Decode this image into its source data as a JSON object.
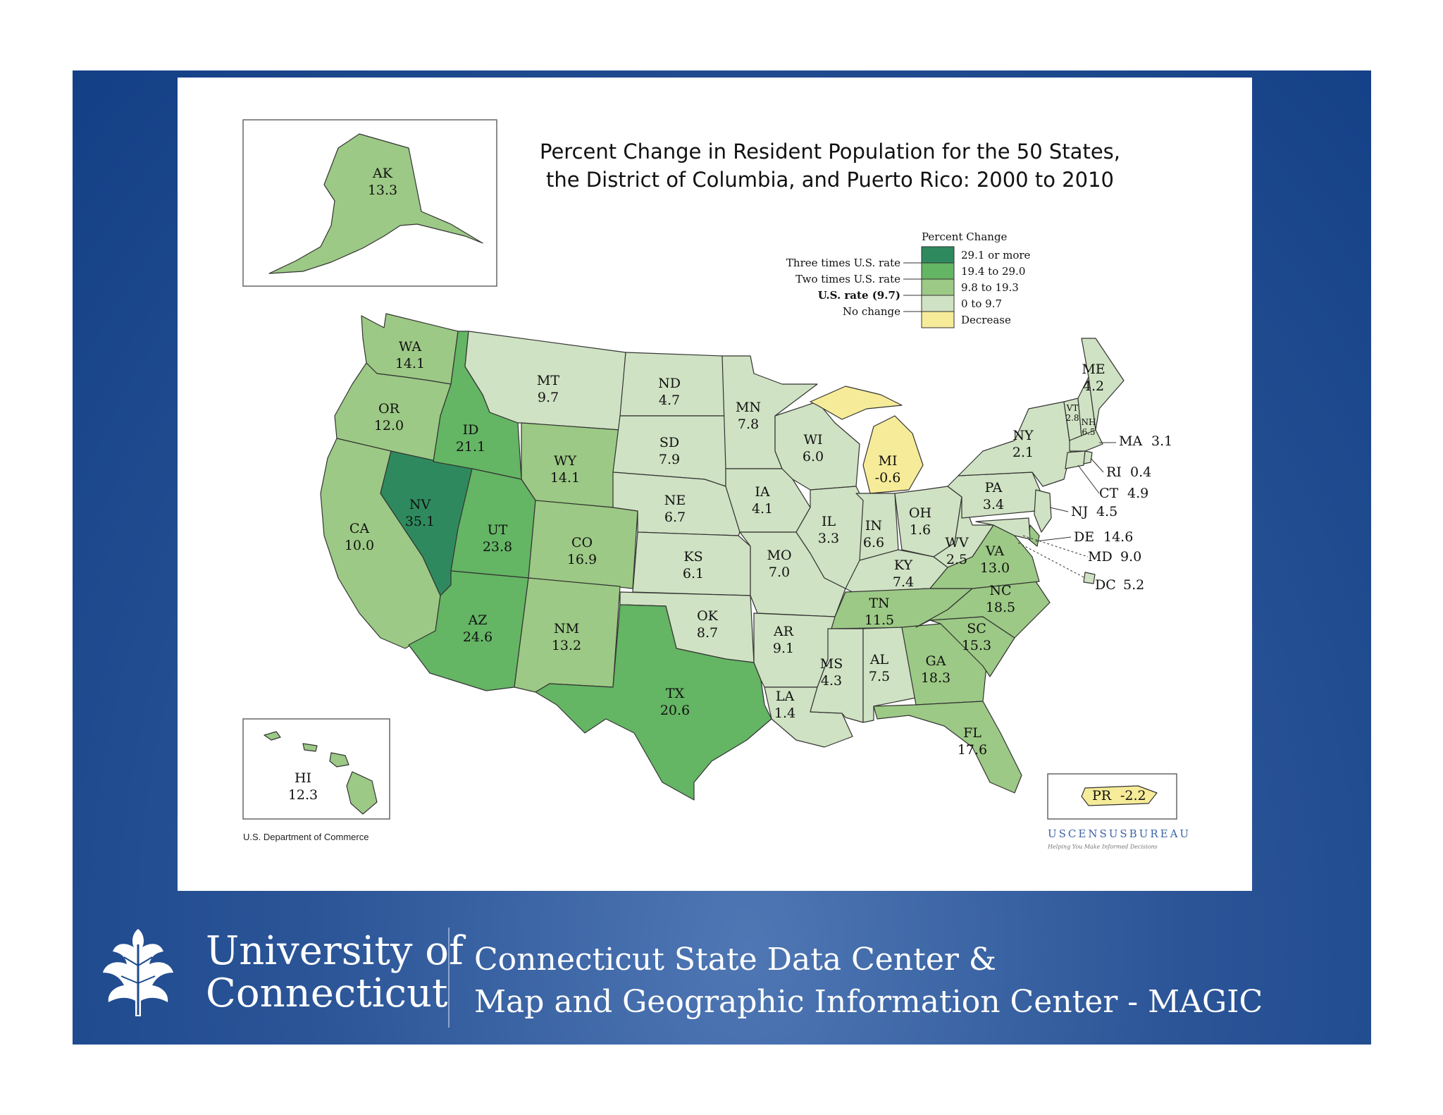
{
  "title": {
    "line1": "Percent Change in Resident Population for the 50 States,",
    "line2": "the District of Columbia, and Puerto Rico:  2000 to 2010"
  },
  "legend": {
    "heading": "Percent Change",
    "bins": [
      {
        "label": "29.1 or more",
        "color": "#2e8a5e",
        "marker": "Three times U.S. rate"
      },
      {
        "label": "19.4 to 29.0",
        "color": "#64b564",
        "marker": "Two times U.S. rate"
      },
      {
        "label": "9.8 to 19.3",
        "color": "#9cc985",
        "marker": "U.S. rate (9.7)"
      },
      {
        "label": "0 to 9.7",
        "color": "#cfe2c3",
        "marker": "No change"
      },
      {
        "label": "Decrease",
        "color": "#f6eb98",
        "marker": ""
      }
    ]
  },
  "states": {
    "AK": {
      "abbr": "AK",
      "value": "13.3"
    },
    "HI": {
      "abbr": "HI",
      "value": "12.3"
    },
    "WA": {
      "abbr": "WA",
      "value": "14.1"
    },
    "OR": {
      "abbr": "OR",
      "value": "12.0"
    },
    "CA": {
      "abbr": "CA",
      "value": "10.0"
    },
    "NV": {
      "abbr": "NV",
      "value": "35.1"
    },
    "ID": {
      "abbr": "ID",
      "value": "21.1"
    },
    "MT": {
      "abbr": "MT",
      "value": "9.7"
    },
    "WY": {
      "abbr": "WY",
      "value": "14.1"
    },
    "UT": {
      "abbr": "UT",
      "value": "23.8"
    },
    "AZ": {
      "abbr": "AZ",
      "value": "24.6"
    },
    "CO": {
      "abbr": "CO",
      "value": "16.9"
    },
    "NM": {
      "abbr": "NM",
      "value": "13.2"
    },
    "ND": {
      "abbr": "ND",
      "value": "4.7"
    },
    "SD": {
      "abbr": "SD",
      "value": "7.9"
    },
    "NE": {
      "abbr": "NE",
      "value": "6.7"
    },
    "KS": {
      "abbr": "KS",
      "value": "6.1"
    },
    "OK": {
      "abbr": "OK",
      "value": "8.7"
    },
    "TX": {
      "abbr": "TX",
      "value": "20.6"
    },
    "MN": {
      "abbr": "MN",
      "value": "7.8"
    },
    "IA": {
      "abbr": "IA",
      "value": "4.1"
    },
    "MO": {
      "abbr": "MO",
      "value": "7.0"
    },
    "AR": {
      "abbr": "AR",
      "value": "9.1"
    },
    "LA": {
      "abbr": "LA",
      "value": "1.4"
    },
    "WI": {
      "abbr": "WI",
      "value": "6.0"
    },
    "IL": {
      "abbr": "IL",
      "value": "3.3"
    },
    "MI": {
      "abbr": "MI",
      "value": "-0.6"
    },
    "IN": {
      "abbr": "IN",
      "value": "6.6"
    },
    "OH": {
      "abbr": "OH",
      "value": "1.6"
    },
    "KY": {
      "abbr": "KY",
      "value": "7.4"
    },
    "TN": {
      "abbr": "TN",
      "value": "11.5"
    },
    "MS": {
      "abbr": "MS",
      "value": "4.3"
    },
    "AL": {
      "abbr": "AL",
      "value": "7.5"
    },
    "GA": {
      "abbr": "GA",
      "value": "18.3"
    },
    "FL": {
      "abbr": "FL",
      "value": "17.6"
    },
    "SC": {
      "abbr": "SC",
      "value": "15.3"
    },
    "NC": {
      "abbr": "NC",
      "value": "18.5"
    },
    "VA": {
      "abbr": "VA",
      "value": "13.0"
    },
    "WV": {
      "abbr": "WV",
      "value": "2.5"
    },
    "PA": {
      "abbr": "PA",
      "value": "3.4"
    },
    "NY": {
      "abbr": "NY",
      "value": "2.1"
    },
    "VT": {
      "abbr": "VT",
      "value": "2.8"
    },
    "NH": {
      "abbr": "NH",
      "value": "6.5"
    },
    "ME": {
      "abbr": "ME",
      "value": "4.2"
    },
    "MA": {
      "abbr": "MA",
      "value": "3.1"
    },
    "RI": {
      "abbr": "RI",
      "value": "0.4"
    },
    "CT": {
      "abbr": "CT",
      "value": "4.9"
    },
    "NJ": {
      "abbr": "NJ",
      "value": "4.5"
    },
    "DE": {
      "abbr": "DE",
      "value": "14.6"
    },
    "MD": {
      "abbr": "MD",
      "value": "9.0"
    },
    "DC": {
      "abbr": "DC",
      "value": "5.2"
    },
    "PR": {
      "abbr": "PR",
      "value": "-2.2"
    }
  },
  "credits": {
    "commerce": "U.S. Department of Commerce",
    "census_logo": "USCENSUSBUREAU",
    "census_tagline": "Helping You Make Informed Decisions"
  },
  "footer": {
    "university_line1": "University of",
    "university_line2": "Connecticut",
    "center_line1": "Connecticut State Data Center &",
    "center_line2": "Map and Geographic Information Center - MAGIC",
    "emblem_icon": "oak-leaf-icon"
  }
}
